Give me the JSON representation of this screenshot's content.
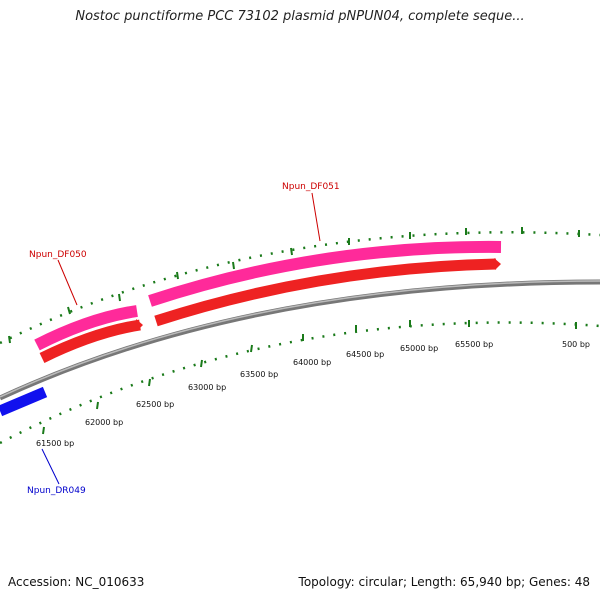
{
  "title": "Nostoc punctiforme PCC 73102 plasmid pNPUN04, complete seque...",
  "footer": {
    "accession": "Accession: NC_010633",
    "summary": "Topology: circular; Length: 65,940 bp; Genes: 48"
  },
  "colors": {
    "forward_gene": "#ee2222",
    "forward_gene_highlight": "#ff2a9a",
    "reverse_gene": "#1111ee",
    "backbone": "#888888",
    "ticks": "#1a7a1a",
    "label_red": "#cc0000",
    "label_blue": "#0000cc"
  },
  "ticks": [
    "61500 bp",
    "62000 bp",
    "62500 bp",
    "63000 bp",
    "63500 bp",
    "64000 bp",
    "64500 bp",
    "65000 bp",
    "65500 bp",
    "500 bp"
  ],
  "genes": [
    {
      "name": "Npun_DF050",
      "strand": "forward"
    },
    {
      "name": "Npun_DF051",
      "strand": "forward"
    },
    {
      "name": "Npun_DR049",
      "strand": "reverse"
    }
  ]
}
